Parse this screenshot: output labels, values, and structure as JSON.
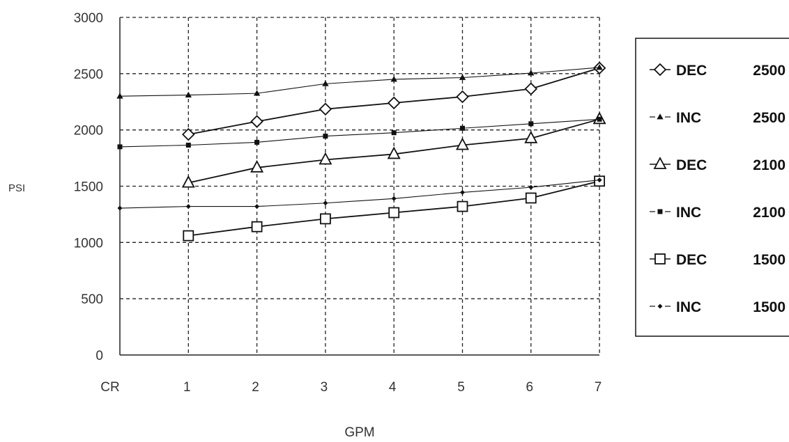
{
  "chart_data": {
    "type": "line",
    "xlabel": "GPM",
    "ylabel": "PSI",
    "categories": [
      "CR",
      "1",
      "2",
      "3",
      "4",
      "5",
      "6",
      "7"
    ],
    "yticks": [
      0,
      500,
      1000,
      1500,
      2000,
      2500,
      3000
    ],
    "ylim": [
      0,
      3000
    ],
    "grid": true,
    "legend_position": "right",
    "series": [
      {
        "name": "DEC",
        "label_value": "2500",
        "marker": "diamond-open",
        "values": [
          null,
          1960,
          2075,
          2185,
          2240,
          2295,
          2365,
          2550
        ]
      },
      {
        "name": "INC",
        "label_value": "2500",
        "marker": "triangle-small-filled",
        "values": [
          2300,
          2310,
          2325,
          2410,
          2450,
          2465,
          2505,
          2555
        ]
      },
      {
        "name": "DEC",
        "label_value": "2100",
        "marker": "triangle-open",
        "values": [
          null,
          1530,
          1665,
          1735,
          1785,
          1865,
          1925,
          2095
        ]
      },
      {
        "name": "INC",
        "label_value": "2100",
        "marker": "square-small-filled",
        "values": [
          1850,
          1865,
          1890,
          1945,
          1975,
          2015,
          2055,
          2095
        ]
      },
      {
        "name": "DEC",
        "label_value": "1500",
        "marker": "square-open",
        "values": [
          null,
          1060,
          1140,
          1210,
          1265,
          1320,
          1395,
          1545
        ]
      },
      {
        "name": "INC",
        "label_value": "1500",
        "marker": "diamond-small-filled",
        "values": [
          1305,
          1320,
          1320,
          1350,
          1390,
          1445,
          1490,
          1555
        ]
      }
    ]
  }
}
